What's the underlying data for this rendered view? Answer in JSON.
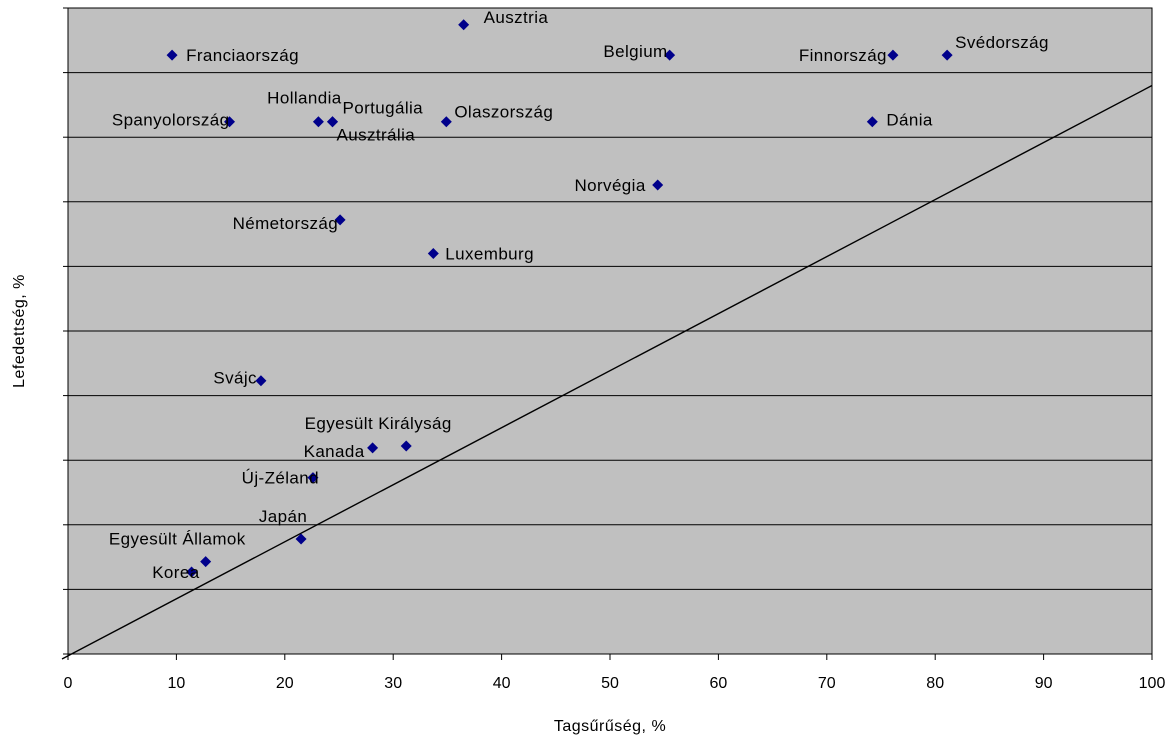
{
  "chart_data": {
    "type": "scatter",
    "xlabel": "Tagsűrűség, %",
    "ylabel": "Lefedettség, %",
    "xlim": [
      0,
      100
    ],
    "ylim": [
      0,
      100
    ],
    "x_ticks": [
      "0",
      "10",
      "20",
      "30",
      "40",
      "50",
      "60",
      "70",
      "80",
      "90",
      "100"
    ],
    "y_tick_labels_shown": false,
    "grid": "horizontal",
    "marker_color": "#00008B",
    "plot_background": "#C0C0C0",
    "reference_line": {
      "from": [
        0,
        0
      ],
      "to": [
        100,
        88
      ]
    },
    "points": [
      {
        "label": "Ausztria",
        "x": 36.5,
        "y": 97.4
      },
      {
        "label": "Franciaország",
        "x": 9.6,
        "y": 92.7
      },
      {
        "label": "Belgium",
        "x": 55.5,
        "y": 92.7
      },
      {
        "label": "Finnország",
        "x": 76.1,
        "y": 92.7
      },
      {
        "label": "Svédország",
        "x": 81.1,
        "y": 92.7
      },
      {
        "label": "Spanyolország",
        "x": 14.9,
        "y": 82.4
      },
      {
        "label": "Hollandia",
        "x": 23.1,
        "y": 82.4
      },
      {
        "label": "Portugália",
        "x": 24.4,
        "y": 82.4
      },
      {
        "label": "Ausztrália",
        "x": 24.4,
        "y": 82.4
      },
      {
        "label": "Olaszország",
        "x": 34.9,
        "y": 82.4
      },
      {
        "label": "Dánia",
        "x": 74.2,
        "y": 82.4
      },
      {
        "label": "Norvégia",
        "x": 54.4,
        "y": 72.6
      },
      {
        "label": "Németország",
        "x": 25.1,
        "y": 67.2
      },
      {
        "label": "Luxemburg",
        "x": 33.7,
        "y": 62.0
      },
      {
        "label": "Svájc",
        "x": 17.8,
        "y": 42.3
      },
      {
        "label": "Egyesült Királyság",
        "x": 31.2,
        "y": 32.2
      },
      {
        "label": "Kanada",
        "x": 28.1,
        "y": 31.9
      },
      {
        "label": "Új-Zéland",
        "x": 22.6,
        "y": 27.3
      },
      {
        "label": "Japán",
        "x": 21.5,
        "y": 17.8
      },
      {
        "label": "Egyesült Államok",
        "x": 12.7,
        "y": 14.3
      },
      {
        "label": "Korea",
        "x": 11.4,
        "y": 12.7
      }
    ]
  }
}
